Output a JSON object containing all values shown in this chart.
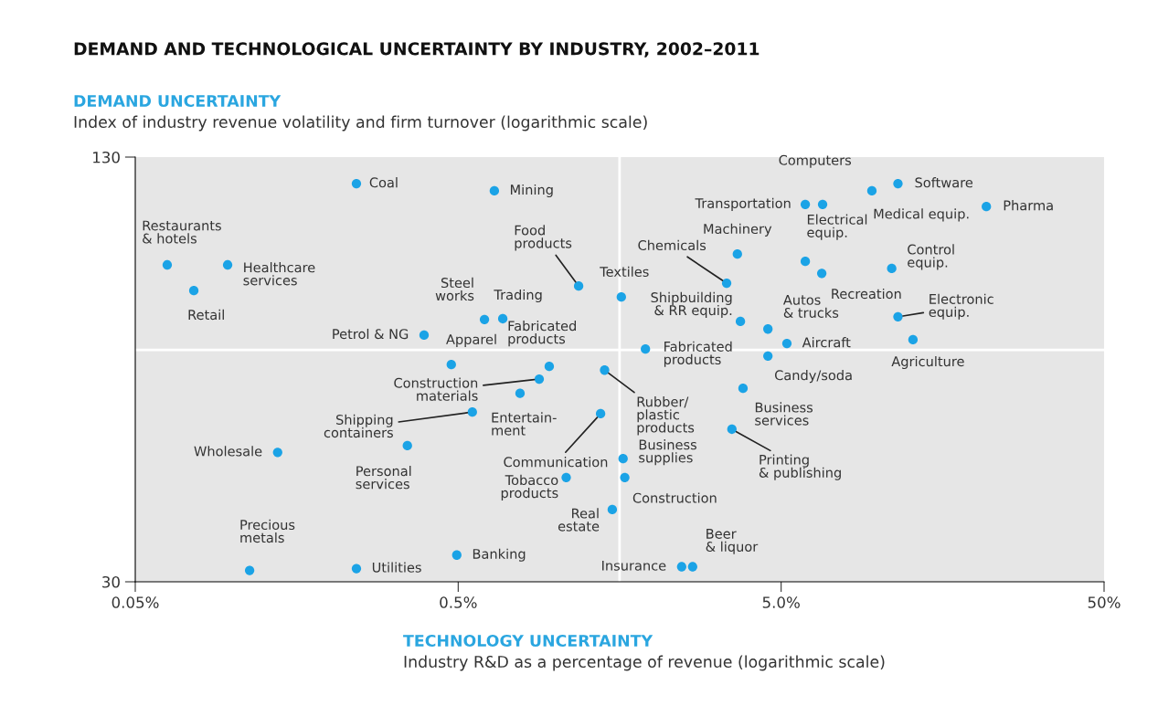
{
  "chart_data": {
    "type": "scatter",
    "title": "DEMAND AND TECHNOLOGICAL UNCERTAINTY BY INDUSTRY, 2002–2011",
    "ylabel": "DEMAND UNCERTAINTY",
    "xlabel": "TECHNOLOGY UNCERTAINTY",
    "x": [
      0.242,
      0.647,
      0.0628,
      0.0966,
      0.0759,
      0.603,
      0.687,
      0.392,
      0.476,
      0.957,
      0.891,
      0.777,
      0.553,
      0.348,
      0.138,
      1.18,
      1.6,
      1.42,
      1.38,
      1.08,
      1.62,
      1.64,
      1.5,
      0.495,
      0.242,
      0.113,
      2.46,
      2.66,
      1.9,
      3.74,
      3.39,
      3.66,
      5.94,
      6.72,
      9.55,
      11.5,
      21.6,
      5.94,
      6.68,
      11.0,
      4.55,
      5.21,
      4.55,
      11.5,
      12.8,
      3.81,
      3.52
    ],
    "values": [
      118.6,
      115.7,
      89.6,
      89.6,
      82.0,
      74.2,
      74.4,
      70.3,
      63.5,
      63.1,
      60.4,
      57.5,
      53.9,
      48.0,
      46.9,
      83.3,
      80.2,
      62.3,
      53.6,
      43.0,
      45.9,
      43.0,
      38.5,
      32.9,
      31.4,
      31.2,
      31.6,
      31.6,
      67.0,
      73.7,
      84.1,
      93.0,
      110.4,
      110.4,
      115.7,
      118.6,
      109.6,
      90.7,
      87.0,
      88.5,
      71.8,
      68.3,
      65.4,
      74.9,
      69.2,
      58.5,
      50.8
    ],
    "color": "#1ba3e6",
    "marker": "circle",
    "log": "xy",
    "xlim": [
      0.05,
      50
    ],
    "ylim": [
      30,
      130
    ],
    "xticks": [
      {
        "value": 0.05,
        "label": "0.05%"
      },
      {
        "value": 0.5,
        "label": "0.5%"
      },
      {
        "value": 5,
        "label": "5.0%"
      },
      {
        "value": 50,
        "label": "50%"
      }
    ],
    "yticks": [
      30,
      130
    ],
    "grid": false,
    "ref_lines": [
      {
        "axis": "x",
        "value": 1.58,
        "color": "#ffffff"
      },
      {
        "axis": "y",
        "value": 66.8,
        "color": "#ffffff"
      }
    ],
    "annotations": [
      "Index of industry revenue volatility and firm turnover (logarithmic scale)",
      "Industry R&D as a percentage of revenue (logarithmic scale)",
      {
        "text": "Coal",
        "x": 0.242,
        "y": 118.6
      },
      {
        "text": "Mining",
        "x": 0.647,
        "y": 115.7
      },
      {
        "text": "Restaurants\n& hotels",
        "x": 0.0628,
        "y": 89.6
      },
      {
        "text": "Healthcare\nservices",
        "x": 0.0966,
        "y": 89.6
      },
      {
        "text": "Retail",
        "x": 0.0759,
        "y": 82.0
      },
      {
        "text": "Steel\nworks",
        "x": 0.603,
        "y": 74.2
      },
      {
        "text": "Trading",
        "x": 0.687,
        "y": 74.4
      },
      {
        "text": "Petrol & NG",
        "x": 0.392,
        "y": 70.3
      },
      {
        "text": "Apparel",
        "x": 0.476,
        "y": 63.5
      },
      {
        "text": "Fabricated\nproducts",
        "x": 0.957,
        "y": 63.1
      },
      {
        "text": "Construction\nmaterials",
        "x": 0.891,
        "y": 60.4
      },
      {
        "text": "Entertain-\nment",
        "x": 0.777,
        "y": 57.5
      },
      {
        "text": "Shipping\ncontainers",
        "x": 0.553,
        "y": 53.9
      },
      {
        "text": "Personal\nservices",
        "x": 0.348,
        "y": 48.0
      },
      {
        "text": "Wholesale",
        "x": 0.138,
        "y": 46.9
      },
      {
        "text": "Food\nproducts",
        "x": 1.18,
        "y": 83.3
      },
      {
        "text": "Textiles",
        "x": 1.6,
        "y": 80.2
      },
      {
        "text": "Rubber/\nplastic\nproducts",
        "x": 1.42,
        "y": 62.3
      },
      {
        "text": "Communication",
        "x": 1.38,
        "y": 53.6
      },
      {
        "text": "Tobacco\nproducts",
        "x": 1.08,
        "y": 43.0
      },
      {
        "text": "Business\nsupplies",
        "x": 1.62,
        "y": 45.9
      },
      {
        "text": "Construction",
        "x": 1.64,
        "y": 43.0
      },
      {
        "text": "Real\nestate",
        "x": 1.5,
        "y": 38.5
      },
      {
        "text": "Banking",
        "x": 0.495,
        "y": 32.9
      },
      {
        "text": "Utilities",
        "x": 0.242,
        "y": 31.4
      },
      {
        "text": "Precious\nmetals",
        "x": 0.113,
        "y": 31.2
      },
      {
        "text": "Insurance",
        "x": 2.46,
        "y": 31.6
      },
      {
        "text": "Beer\n& liquor",
        "x": 2.66,
        "y": 31.6
      },
      {
        "text": "Fabricated\nproducts",
        "x": 1.9,
        "y": 67.0
      },
      {
        "text": "Shipbuilding\n& RR equip.",
        "x": 3.74,
        "y": 73.7
      },
      {
        "text": "Chemicals",
        "x": 3.39,
        "y": 84.1
      },
      {
        "text": "Machinery",
        "x": 3.66,
        "y": 93.0
      },
      {
        "text": "Transportation",
        "x": 5.94,
        "y": 110.4
      },
      {
        "text": "Computers",
        "x": 6.72,
        "y": 110.4
      },
      {
        "text": "Medical equip.",
        "x": 9.55,
        "y": 115.7
      },
      {
        "text": "Software",
        "x": 11.5,
        "y": 118.6
      },
      {
        "text": "Pharma",
        "x": 21.6,
        "y": 109.6
      },
      {
        "text": "Electrical\nequip.",
        "x": 5.94,
        "y": 90.7
      },
      {
        "text": "Recreation",
        "x": 6.68,
        "y": 87.0
      },
      {
        "text": "Control\nequip.",
        "x": 11.0,
        "y": 88.5
      },
      {
        "text": "Autos\n& trucks",
        "x": 4.55,
        "y": 71.8
      },
      {
        "text": "Aircraft",
        "x": 5.21,
        "y": 68.3
      },
      {
        "text": "Candy/soda",
        "x": 4.55,
        "y": 65.4
      },
      {
        "text": "Electronic\nequip.",
        "x": 11.5,
        "y": 74.9
      },
      {
        "text": "Agriculture",
        "x": 12.8,
        "y": 69.2
      },
      {
        "text": "Business\nservices",
        "x": 3.81,
        "y": 58.5
      },
      {
        "text": "Printing\n& publishing",
        "x": 3.52,
        "y": 50.8
      }
    ]
  }
}
